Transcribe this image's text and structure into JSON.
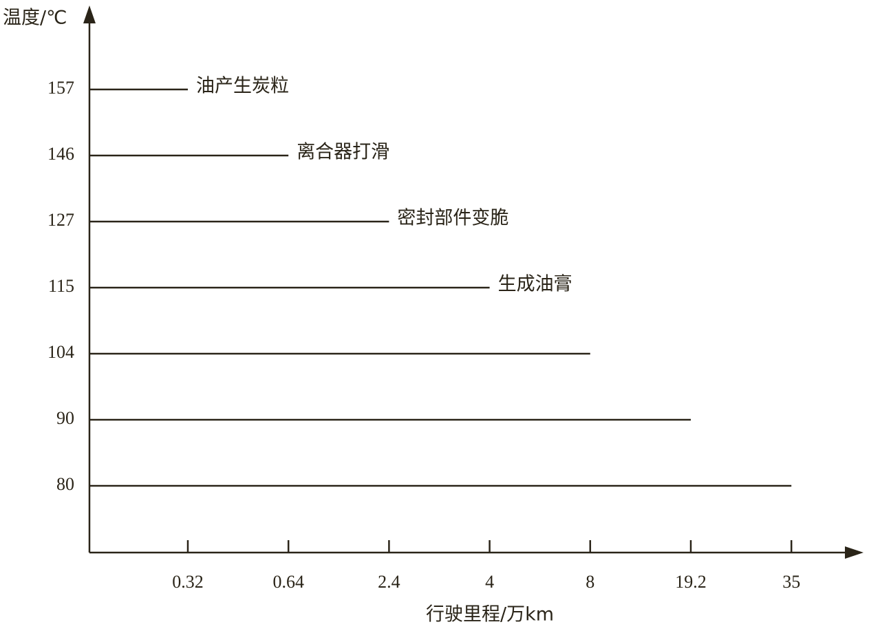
{
  "chart_data": {
    "type": "hbar",
    "y_label": "温度/℃",
    "x_label": "行驶里程/万km",
    "categories": [
      157,
      146,
      127,
      115,
      104,
      90,
      80
    ],
    "values": [
      0.32,
      0.64,
      2.4,
      4,
      8,
      19.2,
      35
    ],
    "bar_labels": [
      "油产生炭粒",
      "离合器打滑",
      "密封部件变脆",
      "生成油膏",
      null,
      null,
      null
    ],
    "xticks": [
      0.32,
      0.64,
      2.4,
      4,
      8,
      19.2,
      35
    ],
    "color": "#2a2418"
  }
}
